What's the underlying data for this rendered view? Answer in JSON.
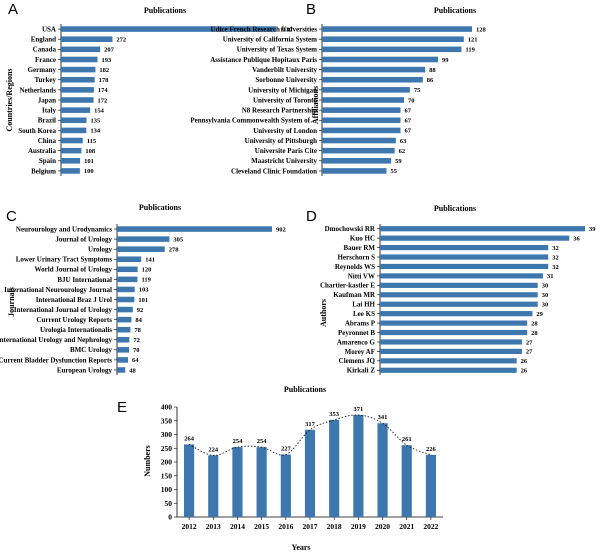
{
  "colors": {
    "bar": "#3d77ae",
    "axis": "#000000",
    "trend": "#000000"
  },
  "chart_data": [
    {
      "panel": "A",
      "type": "bar",
      "orientation": "horizontal",
      "title": "Publications",
      "ylabel": "Countries/Regions",
      "categories": [
        "USA",
        "England",
        "Canada",
        "France",
        "Germany",
        "Turkey",
        "Netherlands",
        "Japan",
        "Italy",
        "Brazil",
        "South Korea",
        "China",
        "Australia",
        "Spain",
        "Belgium"
      ],
      "values": [
        1137,
        272,
        207,
        193,
        182,
        178,
        174,
        172,
        154,
        135,
        134,
        115,
        108,
        101,
        100
      ]
    },
    {
      "panel": "B",
      "type": "bar",
      "orientation": "horizontal",
      "title": "Publications",
      "ylabel": "Affiliations",
      "categories": [
        "Udice French Research Universities",
        "University of California System",
        "University of Texas System",
        "Assistance Publique Hopitaux Paris",
        "Vanderbilt University",
        "Sorbonne University",
        "University of Michigan",
        "University of Toronto",
        "N8 Research Partnership",
        "Pennsylvania Commonwealth System of…",
        "University of London",
        "University of Pittsburgh",
        "Universite Paris Cite",
        "Maastricht University",
        "Cleveland Clinic Foundation"
      ],
      "values": [
        128,
        121,
        119,
        99,
        88,
        86,
        75,
        70,
        67,
        67,
        67,
        63,
        62,
        59,
        55
      ]
    },
    {
      "panel": "C",
      "type": "bar",
      "orientation": "horizontal",
      "title": "Publications",
      "ylabel": "Journals",
      "categories": [
        "Neurourology and Urodynamics",
        "Journal of Urology",
        "Urology",
        "Lower Urinary Tract Symptoms",
        "World Journal of Urology",
        "BJU International",
        "International Neurourology Journal",
        "International Braz J Urol",
        "International Journal of Urology",
        "Current Urology Reports",
        "Urologia Internationalis",
        "International Urology and Nephrology",
        "BMC Urology",
        "Current Bladder Dysfunction Reports",
        "European Urology"
      ],
      "values": [
        902,
        305,
        278,
        141,
        120,
        119,
        103,
        101,
        92,
        84,
        78,
        72,
        70,
        64,
        48
      ]
    },
    {
      "panel": "D",
      "type": "bar",
      "orientation": "horizontal",
      "title": "Publications",
      "ylabel": "Authors",
      "categories": [
        "Dmochowski RR",
        "Kuo HC",
        "Bauer RM",
        "Herschorn S",
        "Reynolds WS",
        "Nitti VW",
        "Chartier-kastler E",
        "Kaufman MR",
        "Lai HH",
        "Lee KS",
        "Abrams P",
        "Peyronnet B",
        "Amarenco G",
        "Morey AF",
        "Clemens JQ",
        "Kirkali Z"
      ],
      "values": [
        39,
        36,
        32,
        32,
        32,
        31,
        30,
        30,
        30,
        29,
        28,
        28,
        27,
        27,
        26,
        26
      ]
    },
    {
      "panel": "E",
      "type": "bar",
      "orientation": "vertical",
      "title": "Publications",
      "xlabel": "Years",
      "ylabel": "Numbers",
      "categories": [
        "2012",
        "2013",
        "2014",
        "2015",
        "2016",
        "2017",
        "2018",
        "2019",
        "2020",
        "2021",
        "2022"
      ],
      "values": [
        264,
        224,
        254,
        254,
        227,
        317,
        353,
        371,
        341,
        261,
        226
      ],
      "ylim": [
        0,
        400
      ],
      "yticks": [
        0,
        50,
        100,
        150,
        200,
        250,
        300,
        350,
        400
      ],
      "trendline": "dotted"
    }
  ]
}
